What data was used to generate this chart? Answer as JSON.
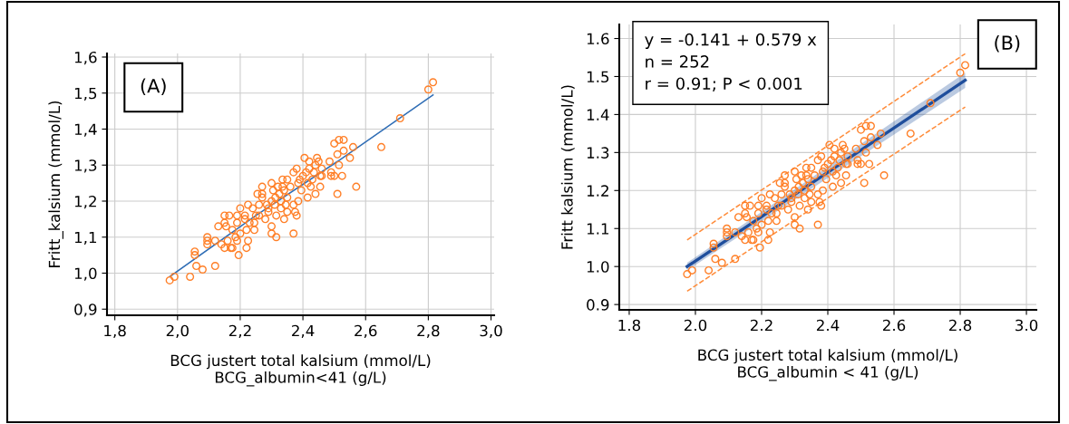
{
  "chart_data": [
    {
      "type": "scatter",
      "xlabel": "BCG justert total kalsium (mmol/L)\nBCG_albumin<41 (g/L)",
      "ylabel": "Fritt_kalsium (mmol/L)",
      "annotations": [
        "(A)"
      ],
      "xlim": [
        1.775,
        3.01
      ],
      "ylim": [
        0.883,
        1.61
      ],
      "xticks": [
        {
          "value": 1.8,
          "label": "1,8"
        },
        {
          "value": 2.0,
          "label": "2,0"
        },
        {
          "value": 2.2,
          "label": "2,2"
        },
        {
          "value": 2.4,
          "label": "2,4"
        },
        {
          "value": 2.6,
          "label": "2,6"
        },
        {
          "value": 2.8,
          "label": "2,8"
        },
        {
          "value": 3.0,
          "label": "3,0"
        }
      ],
      "yticks": [
        {
          "value": 0.9,
          "label": "0,9"
        },
        {
          "value": 1.0,
          "label": "1,0"
        },
        {
          "value": 1.1,
          "label": "1,1"
        },
        {
          "value": 1.2,
          "label": "1,2"
        },
        {
          "value": 1.3,
          "label": "1,3"
        },
        {
          "value": 1.4,
          "label": "1,4"
        },
        {
          "value": 1.5,
          "label": "1,5"
        },
        {
          "value": 1.6,
          "label": "1,6"
        }
      ],
      "grid": true,
      "marker": "circle",
      "series": [
        {
          "color": "#ff7f27",
          "x": [
            1.975,
            1.99,
            2.04,
            2.055,
            2.055,
            2.06,
            2.08,
            2.095,
            2.095,
            2.095,
            2.12,
            2.12,
            2.13,
            2.14,
            2.15,
            2.15,
            2.155,
            2.15,
            2.16,
            2.165,
            2.17,
            2.175,
            2.175,
            2.19,
            2.19,
            2.185,
            2.19,
            2.2,
            2.2,
            2.195,
            2.215,
            2.215,
            2.22,
            2.225,
            2.225,
            2.22,
            2.23,
            2.24,
            2.245,
            2.245,
            2.25,
            2.255,
            2.26,
            2.26,
            2.27,
            2.27,
            2.27,
            2.28,
            2.285,
            2.29,
            2.29,
            2.3,
            2.3,
            2.3,
            2.3,
            2.305,
            2.31,
            2.312,
            2.315,
            2.315,
            2.32,
            2.325,
            2.33,
            2.33,
            2.335,
            2.335,
            2.34,
            2.34,
            2.345,
            2.35,
            2.35,
            2.35,
            2.36,
            2.37,
            2.37,
            2.37,
            2.375,
            2.38,
            2.38,
            2.385,
            2.385,
            2.39,
            2.395,
            2.4,
            2.405,
            2.41,
            2.415,
            2.415,
            2.42,
            2.42,
            2.425,
            2.43,
            2.435,
            2.44,
            2.44,
            2.445,
            2.45,
            2.455,
            2.455,
            2.46,
            2.46,
            2.485,
            2.49,
            2.49,
            2.5,
            2.5,
            2.51,
            2.51,
            2.515,
            2.515,
            2.525,
            2.53,
            2.53,
            2.55,
            2.56,
            2.57,
            2.65,
            2.71,
            2.8,
            2.815
          ],
          "values": [
            0.98,
            0.99,
            0.99,
            1.06,
            1.05,
            1.02,
            1.01,
            1.1,
            1.09,
            1.08,
            1.02,
            1.09,
            1.13,
            1.08,
            1.16,
            1.14,
            1.13,
            1.07,
            1.09,
            1.16,
            1.07,
            1.12,
            1.07,
            1.16,
            1.14,
            1.1,
            1.09,
            1.11,
            1.18,
            1.05,
            1.16,
            1.15,
            1.12,
            1.19,
            1.09,
            1.07,
            1.14,
            1.18,
            1.12,
            1.14,
            1.16,
            1.22,
            1.16,
            1.19,
            1.24,
            1.21,
            1.22,
            1.15,
            1.19,
            1.17,
            1.18,
            1.25,
            1.13,
            1.2,
            1.11,
            1.23,
            1.19,
            1.21,
            1.1,
            1.16,
            1.24,
            1.22,
            1.18,
            1.2,
            1.26,
            1.24,
            1.15,
            1.23,
            1.19,
            1.26,
            1.21,
            1.17,
            1.24,
            1.28,
            1.11,
            1.19,
            1.17,
            1.29,
            1.16,
            1.25,
            1.2,
            1.26,
            1.23,
            1.27,
            1.32,
            1.28,
            1.25,
            1.21,
            1.29,
            1.31,
            1.24,
            1.26,
            1.28,
            1.22,
            1.3,
            1.32,
            1.31,
            1.27,
            1.24,
            1.29,
            1.27,
            1.31,
            1.28,
            1.27,
            1.36,
            1.27,
            1.33,
            1.22,
            1.37,
            1.3,
            1.27,
            1.37,
            1.34,
            1.32,
            1.35,
            1.24,
            1.35,
            1.43,
            1.51,
            1.53
          ]
        },
        {
          "type": "line",
          "color": "#2f6db5",
          "marker": "none",
          "x": [
            1.975,
            2.25,
            2.51,
            2.815
          ],
          "values": [
            0.99,
            1.16,
            1.31,
            1.495
          ]
        }
      ]
    },
    {
      "type": "scatter",
      "xlabel": "BCG justert total kalsium (mmol/L)\nBCG_albumin < 41 (g/L)",
      "ylabel": "Fritt kalsium (mmol/L)",
      "annotations": [
        "(B)",
        "y = -0.141 + 0.579 x\nn = 252\nr = 0.91; P < 0.001"
      ],
      "xlim": [
        1.77,
        3.03
      ],
      "ylim": [
        0.886,
        1.637
      ],
      "xticks": [
        {
          "value": 1.8,
          "label": "1.8"
        },
        {
          "value": 2.0,
          "label": "2.0"
        },
        {
          "value": 2.2,
          "label": "2.2"
        },
        {
          "value": 2.4,
          "label": "2.4"
        },
        {
          "value": 2.6,
          "label": "2.6"
        },
        {
          "value": 2.8,
          "label": "2.8"
        },
        {
          "value": 3.0,
          "label": "3.0"
        }
      ],
      "yticks": [
        {
          "value": 0.9,
          "label": "0.9"
        },
        {
          "value": 1.0,
          "label": "1.0"
        },
        {
          "value": 1.1,
          "label": "1.1"
        },
        {
          "value": 1.2,
          "label": "1.2"
        },
        {
          "value": 1.3,
          "label": "1.3"
        },
        {
          "value": 1.4,
          "label": "1.4"
        },
        {
          "value": 1.5,
          "label": "1.5"
        },
        {
          "value": 1.6,
          "label": "1.6"
        }
      ],
      "grid": true,
      "marker": "circle",
      "series": [
        {
          "type": "line",
          "color": "#ff8c3a",
          "marker": "none",
          "line_style": "dashed",
          "x": [
            1.975,
            2.815
          ],
          "values": [
            1.07,
            1.56
          ]
        },
        {
          "type": "line",
          "color": "#ff8c3a",
          "marker": "none",
          "line_style": "dashed",
          "x": [
            1.975,
            2.815
          ],
          "values": [
            0.935,
            1.42
          ]
        },
        {
          "type": "line",
          "color": "#1f4e9c",
          "marker": "none",
          "x": [
            1.975,
            2.815
          ],
          "values": [
            1.0,
            1.49
          ],
          "lower": [
            0.99,
            1.47
          ],
          "upper": [
            1.01,
            1.51
          ]
        },
        {
          "color": "#ff7f27",
          "x": [
            1.975,
            1.99,
            2.04,
            2.055,
            2.055,
            2.06,
            2.08,
            2.095,
            2.095,
            2.095,
            2.12,
            2.12,
            2.13,
            2.14,
            2.15,
            2.15,
            2.155,
            2.15,
            2.16,
            2.165,
            2.17,
            2.175,
            2.175,
            2.19,
            2.19,
            2.185,
            2.19,
            2.2,
            2.2,
            2.195,
            2.215,
            2.215,
            2.22,
            2.225,
            2.225,
            2.22,
            2.23,
            2.24,
            2.245,
            2.245,
            2.25,
            2.255,
            2.26,
            2.26,
            2.27,
            2.27,
            2.27,
            2.28,
            2.285,
            2.29,
            2.29,
            2.3,
            2.3,
            2.3,
            2.3,
            2.305,
            2.31,
            2.312,
            2.315,
            2.315,
            2.32,
            2.325,
            2.33,
            2.33,
            2.335,
            2.335,
            2.34,
            2.34,
            2.345,
            2.35,
            2.35,
            2.35,
            2.36,
            2.37,
            2.37,
            2.37,
            2.375,
            2.38,
            2.38,
            2.385,
            2.385,
            2.39,
            2.395,
            2.4,
            2.405,
            2.41,
            2.415,
            2.415,
            2.42,
            2.42,
            2.425,
            2.43,
            2.435,
            2.44,
            2.44,
            2.445,
            2.45,
            2.455,
            2.455,
            2.46,
            2.46,
            2.485,
            2.49,
            2.49,
            2.5,
            2.5,
            2.51,
            2.51,
            2.515,
            2.515,
            2.525,
            2.53,
            2.53,
            2.55,
            2.56,
            2.57,
            2.65,
            2.71,
            2.8,
            2.815
          ],
          "values": [
            0.98,
            0.99,
            0.99,
            1.06,
            1.05,
            1.02,
            1.01,
            1.1,
            1.09,
            1.08,
            1.02,
            1.09,
            1.13,
            1.08,
            1.16,
            1.14,
            1.13,
            1.07,
            1.09,
            1.16,
            1.07,
            1.12,
            1.07,
            1.16,
            1.14,
            1.1,
            1.09,
            1.11,
            1.18,
            1.05,
            1.16,
            1.15,
            1.12,
            1.19,
            1.09,
            1.07,
            1.14,
            1.18,
            1.12,
            1.14,
            1.16,
            1.22,
            1.16,
            1.19,
            1.24,
            1.21,
            1.22,
            1.15,
            1.19,
            1.17,
            1.18,
            1.25,
            1.13,
            1.2,
            1.11,
            1.23,
            1.19,
            1.21,
            1.1,
            1.16,
            1.24,
            1.22,
            1.18,
            1.2,
            1.26,
            1.24,
            1.15,
            1.23,
            1.19,
            1.26,
            1.21,
            1.17,
            1.24,
            1.28,
            1.11,
            1.19,
            1.17,
            1.29,
            1.16,
            1.25,
            1.2,
            1.26,
            1.23,
            1.27,
            1.32,
            1.28,
            1.25,
            1.21,
            1.29,
            1.31,
            1.24,
            1.26,
            1.28,
            1.22,
            1.3,
            1.32,
            1.31,
            1.27,
            1.24,
            1.29,
            1.27,
            1.31,
            1.28,
            1.27,
            1.36,
            1.27,
            1.33,
            1.22,
            1.37,
            1.3,
            1.27,
            1.37,
            1.34,
            1.32,
            1.35,
            1.24,
            1.35,
            1.43,
            1.51,
            1.53
          ]
        }
      ]
    }
  ]
}
